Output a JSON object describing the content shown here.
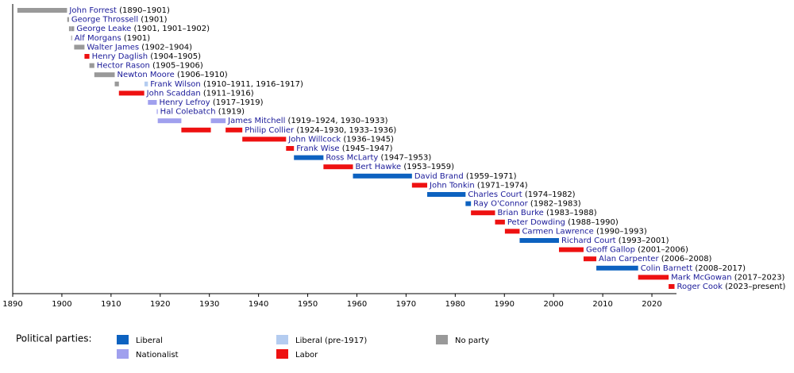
{
  "chart_data": {
    "type": "timeline",
    "xlim": [
      1890,
      2025
    ],
    "xticks": [
      1890,
      1900,
      1910,
      1920,
      1930,
      1940,
      1950,
      1960,
      1970,
      1980,
      1990,
      2000,
      2010,
      2020
    ],
    "rows": [
      {
        "name": "John Forrest",
        "term": "(1890–1901)",
        "segments": [
          {
            "start": 1890.95,
            "end": 1901.05,
            "color": "#999999"
          }
        ]
      },
      {
        "name": "George Throssell",
        "term": "(1901)",
        "segments": [
          {
            "start": 1901.1,
            "end": 1901.45,
            "color": "#999999"
          }
        ]
      },
      {
        "name": "George Leake",
        "term": "(1901, 1901–1902)",
        "segments": [
          {
            "start": 1901.45,
            "end": 1901.9,
            "color": "#999999"
          },
          {
            "start": 1901.95,
            "end": 1902.5,
            "color": "#999999"
          }
        ]
      },
      {
        "name": "Alf Morgans",
        "term": "(1901)",
        "segments": [
          {
            "start": 1901.9,
            "end": 1901.95,
            "color": "#999999"
          }
        ]
      },
      {
        "name": "Walter James",
        "term": "(1902–1904)",
        "segments": [
          {
            "start": 1902.5,
            "end": 1904.6,
            "color": "#999999"
          }
        ]
      },
      {
        "name": "Henry Daglish",
        "term": "(1904–1905)",
        "segments": [
          {
            "start": 1904.6,
            "end": 1905.6,
            "color": "#ee1111"
          }
        ]
      },
      {
        "name": "Hector Rason",
        "term": "(1905–1906)",
        "segments": [
          {
            "start": 1905.6,
            "end": 1906.6,
            "color": "#999999"
          }
        ]
      },
      {
        "name": "Newton Moore",
        "term": "(1906–1910)",
        "segments": [
          {
            "start": 1906.6,
            "end": 1910.75,
            "color": "#999999"
          }
        ]
      },
      {
        "name": "Frank Wilson",
        "term": "(1910–1911, 1916–1917)",
        "segments": [
          {
            "start": 1910.75,
            "end": 1911.6,
            "color": "#999999"
          },
          {
            "start": 1916.8,
            "end": 1917.5,
            "color": "#b4ccf0"
          }
        ]
      },
      {
        "name": "John Scaddan",
        "term": "(1911–1916)",
        "segments": [
          {
            "start": 1911.6,
            "end": 1916.75,
            "color": "#ee1111"
          }
        ]
      },
      {
        "name": "Henry Lefroy",
        "term": "(1917–1919)",
        "segments": [
          {
            "start": 1917.5,
            "end": 1919.3,
            "color": "#a0a0ee"
          }
        ]
      },
      {
        "name": "Hal Colebatch",
        "term": "(1919)",
        "segments": [
          {
            "start": 1919.3,
            "end": 1919.5,
            "color": "#a0a0ee"
          }
        ]
      },
      {
        "name": "James Mitchell",
        "term": "(1919–1924, 1930–1933)",
        "segments": [
          {
            "start": 1919.5,
            "end": 1924.3,
            "color": "#a0a0ee"
          },
          {
            "start": 1930.3,
            "end": 1933.3,
            "color": "#a0a0ee"
          }
        ]
      },
      {
        "name": "Philip Collier",
        "term": "(1924–1930, 1933–1936)",
        "segments": [
          {
            "start": 1924.3,
            "end": 1930.3,
            "color": "#ee1111"
          },
          {
            "start": 1933.3,
            "end": 1936.7,
            "color": "#ee1111"
          }
        ]
      },
      {
        "name": "John Willcock",
        "term": "(1936–1945)",
        "segments": [
          {
            "start": 1936.7,
            "end": 1945.6,
            "color": "#ee1111"
          }
        ]
      },
      {
        "name": "Frank Wise",
        "term": "(1945–1947)",
        "segments": [
          {
            "start": 1945.6,
            "end": 1947.2,
            "color": "#ee1111"
          }
        ]
      },
      {
        "name": "Ross McLarty",
        "term": "(1947–1953)",
        "segments": [
          {
            "start": 1947.2,
            "end": 1953.2,
            "color": "#0d62c0"
          }
        ]
      },
      {
        "name": "Bert Hawke",
        "term": "(1953–1959)",
        "segments": [
          {
            "start": 1953.2,
            "end": 1959.2,
            "color": "#ee1111"
          }
        ]
      },
      {
        "name": "David Brand",
        "term": "(1959–1971)",
        "segments": [
          {
            "start": 1959.2,
            "end": 1971.2,
            "color": "#0d62c0"
          }
        ]
      },
      {
        "name": "John Tonkin",
        "term": "(1971–1974)",
        "segments": [
          {
            "start": 1971.2,
            "end": 1974.3,
            "color": "#ee1111"
          }
        ]
      },
      {
        "name": "Charles Court",
        "term": "(1974–1982)",
        "segments": [
          {
            "start": 1974.3,
            "end": 1982.1,
            "color": "#0d62c0"
          }
        ]
      },
      {
        "name": "Ray O'Connor",
        "term": "(1982–1983)",
        "segments": [
          {
            "start": 1982.1,
            "end": 1983.2,
            "color": "#0d62c0"
          }
        ]
      },
      {
        "name": "Brian Burke",
        "term": "(1983–1988)",
        "segments": [
          {
            "start": 1983.2,
            "end": 1988.1,
            "color": "#ee1111"
          }
        ]
      },
      {
        "name": "Peter Dowding",
        "term": "(1988–1990)",
        "segments": [
          {
            "start": 1988.1,
            "end": 1990.1,
            "color": "#ee1111"
          }
        ]
      },
      {
        "name": "Carmen Lawrence",
        "term": "(1990–1993)",
        "segments": [
          {
            "start": 1990.1,
            "end": 1993.1,
            "color": "#ee1111"
          }
        ]
      },
      {
        "name": "Richard Court",
        "term": "(1993–2001)",
        "segments": [
          {
            "start": 1993.1,
            "end": 2001.1,
            "color": "#0d62c0"
          }
        ]
      },
      {
        "name": "Geoff Gallop",
        "term": "(2001–2006)",
        "segments": [
          {
            "start": 2001.1,
            "end": 2006.1,
            "color": "#ee1111"
          }
        ]
      },
      {
        "name": "Alan Carpenter",
        "term": "(2006–2008)",
        "segments": [
          {
            "start": 2006.1,
            "end": 2008.7,
            "color": "#ee1111"
          }
        ]
      },
      {
        "name": "Colin Barnett",
        "term": "(2008–2017)",
        "segments": [
          {
            "start": 2008.7,
            "end": 2017.2,
            "color": "#0d62c0"
          }
        ]
      },
      {
        "name": "Mark McGowan",
        "term": "(2017–2023)",
        "segments": [
          {
            "start": 2017.2,
            "end": 2023.4,
            "color": "#ee1111"
          }
        ]
      },
      {
        "name": "Roger Cook",
        "term": "(2023–present)",
        "segments": [
          {
            "start": 2023.4,
            "end": 2024.6,
            "color": "#ee1111"
          }
        ]
      }
    ],
    "legend_title": "Political parties:",
    "legend": [
      {
        "name": "Liberal",
        "color": "#0d62c0"
      },
      {
        "name": "Nationalist",
        "color": "#a0a0ee"
      },
      {
        "name": "Liberal (pre-1917)",
        "color": "#b4ccf0"
      },
      {
        "name": "Labor",
        "color": "#ee1111"
      },
      {
        "name": "No party",
        "color": "#999999"
      }
    ]
  }
}
